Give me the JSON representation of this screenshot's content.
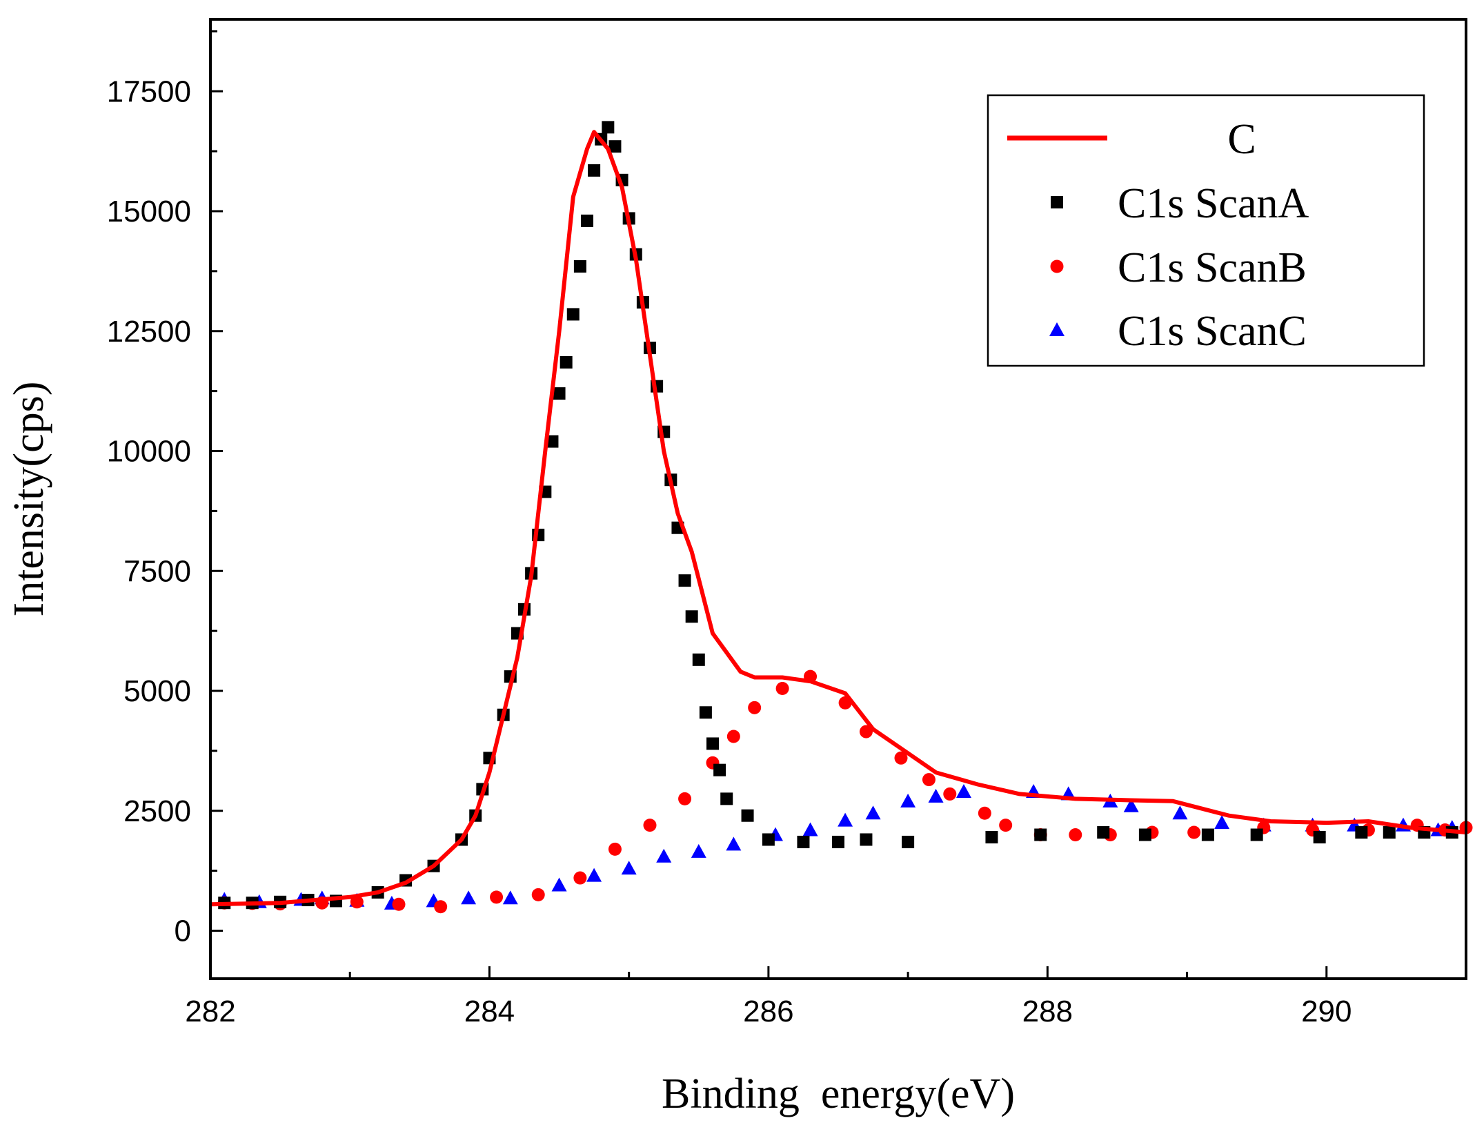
{
  "chart_data": {
    "type": "scatter",
    "title": "",
    "xlabel": "Binding  energy(eV)",
    "ylabel": "Intensity(cps)",
    "xlim": [
      282,
      291
    ],
    "ylim": [
      -1000,
      19000
    ],
    "x_ticks": [
      282,
      284,
      286,
      288,
      290
    ],
    "x_tick_labels": [
      "282",
      "284",
      "286",
      "288",
      "290"
    ],
    "y_ticks": [
      0,
      2500,
      5000,
      7500,
      10000,
      12500,
      15000,
      17500
    ],
    "y_tick_labels": [
      "0",
      "2500",
      "5000",
      "7500",
      "10000",
      "12500",
      "15000",
      "17500"
    ],
    "legend_position": "top-right",
    "series": [
      {
        "name": "C",
        "style": "line",
        "color": "#ff0000",
        "points": [
          [
            282.0,
            550
          ],
          [
            282.5,
            580
          ],
          [
            283.0,
            700
          ],
          [
            283.2,
            800
          ],
          [
            283.4,
            1000
          ],
          [
            283.6,
            1350
          ],
          [
            283.8,
            1900
          ],
          [
            283.9,
            2400
          ],
          [
            284.0,
            3300
          ],
          [
            284.1,
            4500
          ],
          [
            284.2,
            5700
          ],
          [
            284.3,
            7400
          ],
          [
            284.4,
            10000
          ],
          [
            284.5,
            12500
          ],
          [
            284.6,
            15300
          ],
          [
            284.7,
            16300
          ],
          [
            284.75,
            16650
          ],
          [
            284.85,
            16300
          ],
          [
            284.95,
            15500
          ],
          [
            285.05,
            14000
          ],
          [
            285.15,
            12000
          ],
          [
            285.25,
            10000
          ],
          [
            285.35,
            8700
          ],
          [
            285.45,
            7900
          ],
          [
            285.6,
            6200
          ],
          [
            285.7,
            5800
          ],
          [
            285.8,
            5400
          ],
          [
            285.9,
            5280
          ],
          [
            286.1,
            5280
          ],
          [
            286.3,
            5200
          ],
          [
            286.55,
            4950
          ],
          [
            286.75,
            4200
          ],
          [
            287.0,
            3700
          ],
          [
            287.2,
            3300
          ],
          [
            287.5,
            3050
          ],
          [
            287.8,
            2850
          ],
          [
            288.2,
            2750
          ],
          [
            288.6,
            2720
          ],
          [
            288.9,
            2700
          ],
          [
            289.3,
            2400
          ],
          [
            289.6,
            2280
          ],
          [
            290.0,
            2250
          ],
          [
            290.3,
            2280
          ],
          [
            290.6,
            2150
          ],
          [
            291.0,
            2050
          ]
        ]
      },
      {
        "name": "C1s ScanA",
        "style": "square",
        "color": "#000000",
        "points": [
          [
            282.1,
            580
          ],
          [
            282.3,
            580
          ],
          [
            282.5,
            600
          ],
          [
            282.7,
            640
          ],
          [
            282.9,
            620
          ],
          [
            283.2,
            800
          ],
          [
            283.4,
            1050
          ],
          [
            283.6,
            1350
          ],
          [
            283.8,
            1900
          ],
          [
            283.9,
            2400
          ],
          [
            283.95,
            2950
          ],
          [
            284.0,
            3600
          ],
          [
            284.1,
            4500
          ],
          [
            284.15,
            5300
          ],
          [
            284.2,
            6200
          ],
          [
            284.25,
            6700
          ],
          [
            284.3,
            7450
          ],
          [
            284.35,
            8250
          ],
          [
            284.4,
            9150
          ],
          [
            284.45,
            10200
          ],
          [
            284.5,
            11200
          ],
          [
            284.55,
            11850
          ],
          [
            284.6,
            12850
          ],
          [
            284.65,
            13850
          ],
          [
            284.7,
            14800
          ],
          [
            284.75,
            15850
          ],
          [
            284.8,
            16500
          ],
          [
            284.85,
            16750
          ],
          [
            284.9,
            16350
          ],
          [
            284.95,
            15650
          ],
          [
            285.0,
            14850
          ],
          [
            285.05,
            14100
          ],
          [
            285.1,
            13100
          ],
          [
            285.15,
            12150
          ],
          [
            285.2,
            11350
          ],
          [
            285.25,
            10400
          ],
          [
            285.3,
            9400
          ],
          [
            285.35,
            8400
          ],
          [
            285.4,
            7300
          ],
          [
            285.45,
            6550
          ],
          [
            285.5,
            5650
          ],
          [
            285.55,
            4550
          ],
          [
            285.6,
            3900
          ],
          [
            285.65,
            3350
          ],
          [
            285.7,
            2750
          ],
          [
            285.85,
            2400
          ],
          [
            286.0,
            1900
          ],
          [
            286.25,
            1850
          ],
          [
            286.5,
            1850
          ],
          [
            286.7,
            1900
          ],
          [
            287.0,
            1850
          ],
          [
            287.6,
            1950
          ],
          [
            287.95,
            2000
          ],
          [
            288.4,
            2050
          ],
          [
            288.7,
            2000
          ],
          [
            289.15,
            2000
          ],
          [
            289.5,
            2000
          ],
          [
            289.95,
            1950
          ],
          [
            290.25,
            2050
          ],
          [
            290.45,
            2050
          ],
          [
            290.7,
            2050
          ],
          [
            290.9,
            2050
          ]
        ]
      },
      {
        "name": "C1s ScanB",
        "style": "circle",
        "color": "#ff0000",
        "points": [
          [
            282.1,
            580
          ],
          [
            282.3,
            570
          ],
          [
            282.5,
            560
          ],
          [
            282.8,
            580
          ],
          [
            283.05,
            600
          ],
          [
            283.35,
            550
          ],
          [
            283.65,
            500
          ],
          [
            284.05,
            700
          ],
          [
            284.35,
            750
          ],
          [
            284.65,
            1100
          ],
          [
            284.9,
            1700
          ],
          [
            285.15,
            2200
          ],
          [
            285.4,
            2750
          ],
          [
            285.6,
            3500
          ],
          [
            285.75,
            4050
          ],
          [
            285.9,
            4650
          ],
          [
            286.1,
            5050
          ],
          [
            286.3,
            5300
          ],
          [
            286.55,
            4750
          ],
          [
            286.7,
            4150
          ],
          [
            286.95,
            3600
          ],
          [
            287.15,
            3150
          ],
          [
            287.3,
            2850
          ],
          [
            287.55,
            2450
          ],
          [
            287.7,
            2200
          ],
          [
            287.95,
            2000
          ],
          [
            288.2,
            2000
          ],
          [
            288.45,
            2000
          ],
          [
            288.75,
            2050
          ],
          [
            289.05,
            2050
          ],
          [
            289.55,
            2150
          ],
          [
            289.9,
            2100
          ],
          [
            290.3,
            2100
          ],
          [
            290.65,
            2200
          ],
          [
            290.85,
            2100
          ],
          [
            291.0,
            2150
          ]
        ]
      },
      {
        "name": "C1s ScanC",
        "style": "triangle",
        "color": "#0000ff",
        "points": [
          [
            282.1,
            650
          ],
          [
            282.35,
            600
          ],
          [
            282.65,
            650
          ],
          [
            282.8,
            680
          ],
          [
            283.05,
            630
          ],
          [
            283.3,
            570
          ],
          [
            283.6,
            620
          ],
          [
            283.85,
            680
          ],
          [
            284.15,
            680
          ],
          [
            284.5,
            950
          ],
          [
            284.75,
            1150
          ],
          [
            285.0,
            1300
          ],
          [
            285.25,
            1550
          ],
          [
            285.5,
            1650
          ],
          [
            285.75,
            1800
          ],
          [
            286.05,
            2000
          ],
          [
            286.3,
            2100
          ],
          [
            286.55,
            2300
          ],
          [
            286.75,
            2450
          ],
          [
            287.0,
            2700
          ],
          [
            287.2,
            2800
          ],
          [
            287.4,
            2900
          ],
          [
            287.9,
            2900
          ],
          [
            288.15,
            2850
          ],
          [
            288.45,
            2700
          ],
          [
            288.6,
            2600
          ],
          [
            288.95,
            2450
          ],
          [
            289.25,
            2250
          ],
          [
            289.55,
            2200
          ],
          [
            289.9,
            2200
          ],
          [
            290.2,
            2200
          ],
          [
            290.55,
            2200
          ],
          [
            290.8,
            2100
          ],
          [
            290.9,
            2150
          ]
        ]
      }
    ]
  }
}
